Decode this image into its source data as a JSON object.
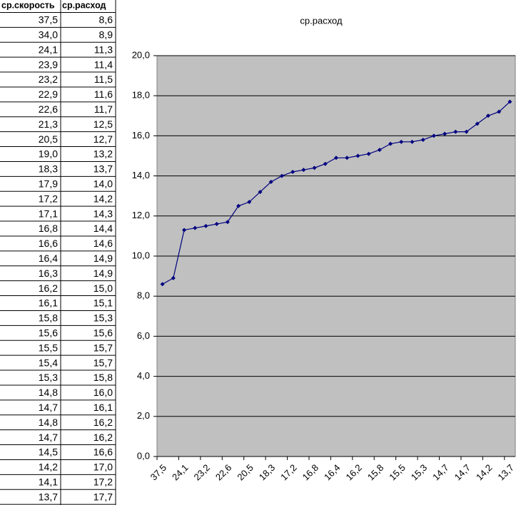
{
  "table": {
    "header": [
      "ср.скорость",
      "ср.расход"
    ],
    "rows": [
      [
        "37,5",
        "8,6"
      ],
      [
        "34,0",
        "8,9"
      ],
      [
        "24,1",
        "11,3"
      ],
      [
        "23,9",
        "11,4"
      ],
      [
        "23,2",
        "11,5"
      ],
      [
        "22,9",
        "11,6"
      ],
      [
        "22,6",
        "11,7"
      ],
      [
        "21,3",
        "12,5"
      ],
      [
        "20,5",
        "12,7"
      ],
      [
        "19,0",
        "13,2"
      ],
      [
        "18,3",
        "13,7"
      ],
      [
        "17,9",
        "14,0"
      ],
      [
        "17,2",
        "14,2"
      ],
      [
        "17,1",
        "14,3"
      ],
      [
        "16,8",
        "14,4"
      ],
      [
        "16,6",
        "14,6"
      ],
      [
        "16,4",
        "14,9"
      ],
      [
        "16,3",
        "14,9"
      ],
      [
        "16,2",
        "15,0"
      ],
      [
        "16,1",
        "15,1"
      ],
      [
        "15,8",
        "15,3"
      ],
      [
        "15,6",
        "15,6"
      ],
      [
        "15,5",
        "15,7"
      ],
      [
        "15,4",
        "15,7"
      ],
      [
        "15,3",
        "15,8"
      ],
      [
        "14,8",
        "16,0"
      ],
      [
        "14,7",
        "16,1"
      ],
      [
        "14,8",
        "16,2"
      ],
      [
        "14,7",
        "16,2"
      ],
      [
        "14,5",
        "16,6"
      ],
      [
        "14,2",
        "17,0"
      ],
      [
        "14,1",
        "17,2"
      ],
      [
        "13,7",
        "17,7"
      ]
    ]
  },
  "chart_data": {
    "type": "line",
    "title": "ср.расход",
    "categories": [
      "37,5",
      null,
      "24,1",
      null,
      "23,2",
      null,
      "22,6",
      null,
      "20,5",
      null,
      "18,3",
      null,
      "17,2",
      null,
      "16,8",
      null,
      "16,4",
      null,
      "16,2",
      null,
      "15,8",
      null,
      "15,5",
      null,
      "15,3",
      null,
      "14,7",
      null,
      "14,7",
      null,
      "14,2",
      null,
      "13,7"
    ],
    "series": [
      {
        "name": "ср.расход",
        "color": "#000080",
        "values": [
          8.6,
          8.9,
          11.3,
          11.4,
          11.5,
          11.6,
          11.7,
          12.5,
          12.7,
          13.2,
          13.7,
          14.0,
          14.2,
          14.3,
          14.4,
          14.6,
          14.9,
          14.9,
          15.0,
          15.1,
          15.3,
          15.6,
          15.7,
          15.7,
          15.8,
          16.0,
          16.1,
          16.2,
          16.2,
          16.6,
          17.0,
          17.2,
          17.7
        ]
      }
    ],
    "ylim": [
      0,
      20
    ],
    "yticks": [
      {
        "value": 0,
        "label": "0,0"
      },
      {
        "value": 2,
        "label": "2,0"
      },
      {
        "value": 4,
        "label": "4,0"
      },
      {
        "value": 6,
        "label": "6,0"
      },
      {
        "value": 8,
        "label": "8,0"
      },
      {
        "value": 10,
        "label": "10,0"
      },
      {
        "value": 12,
        "label": "12,0"
      },
      {
        "value": 14,
        "label": "14,0"
      },
      {
        "value": 16,
        "label": "16,0"
      },
      {
        "value": 18,
        "label": "18,0"
      },
      {
        "value": 20,
        "label": "20,0"
      }
    ],
    "grid": true,
    "plot_background": "#c0c0c0"
  }
}
